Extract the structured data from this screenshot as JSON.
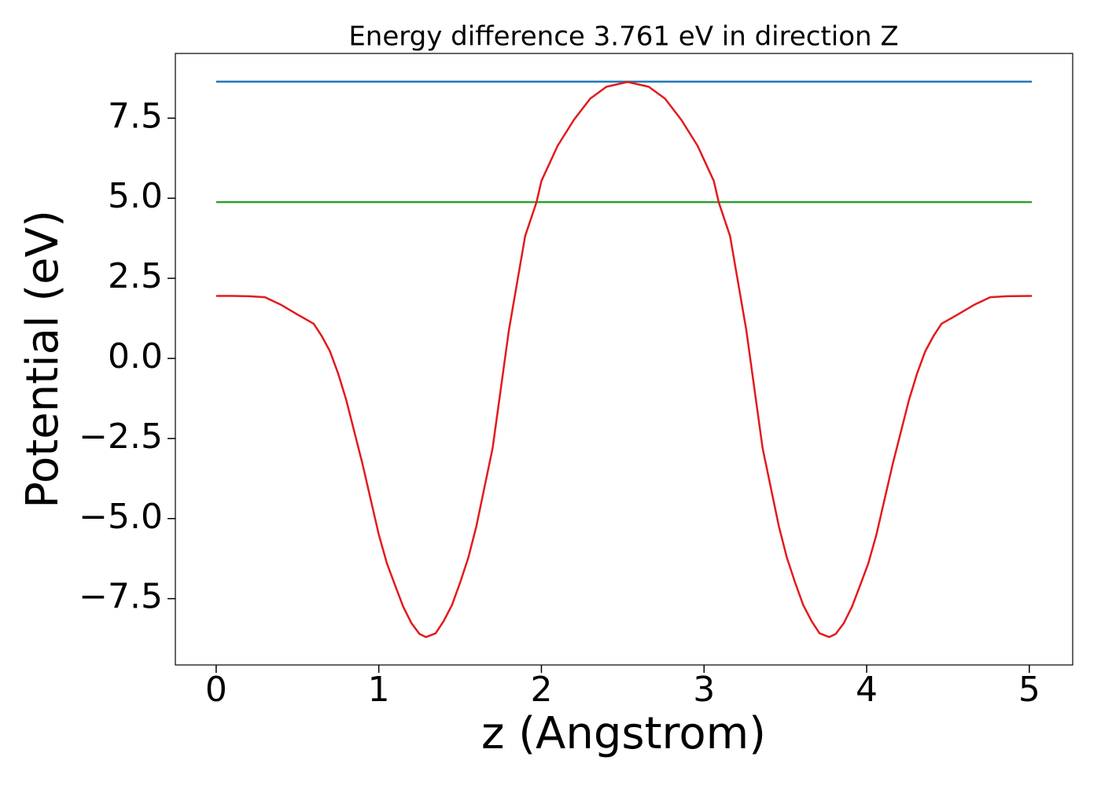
{
  "chart_data": {
    "type": "line",
    "title": "Energy difference 3.761 eV in direction Z",
    "x_label": "z (Angstrom)",
    "y_label": "Potential (eV)",
    "xlim": [
      -0.2508,
      5.2668
    ],
    "ylim": [
      -9.57,
      9.52
    ],
    "xticks": [
      0,
      1,
      2,
      3,
      4,
      5
    ],
    "yticks": [
      {
        "value": -7.5,
        "label": "−7.5"
      },
      {
        "value": -5,
        "label": "−5.0"
      },
      {
        "value": -2.5,
        "label": "−2.5"
      },
      {
        "value": 0,
        "label": "0.0"
      },
      2.5,
      {
        "value": 5,
        "label": "5.0"
      },
      7.5
    ],
    "grid": false,
    "series": [
      {
        "color": "#1f77b4",
        "x": [
          0,
          5.016
        ],
        "values": [
          8.64,
          8.64
        ]
      },
      {
        "color": "#2ca02c",
        "x": [
          0,
          5.016
        ],
        "values": [
          4.879,
          4.879
        ]
      },
      {
        "color": "#e31a1c",
        "x": [
          0,
          0.1,
          0.2,
          0.3,
          0.4,
          0.5,
          0.6,
          0.65,
          0.7,
          0.75,
          0.8,
          0.9,
          1.0,
          1.05,
          1.1,
          1.15,
          1.2,
          1.25,
          1.29,
          1.35,
          1.4,
          1.45,
          1.5,
          1.55,
          1.6,
          1.7,
          1.8,
          1.9,
          1.97,
          2.0,
          2.1,
          2.2,
          2.3,
          2.4,
          2.53,
          2.66,
          2.76,
          2.86,
          2.96,
          3.06,
          3.09,
          3.16,
          3.26,
          3.36,
          3.46,
          3.51,
          3.56,
          3.61,
          3.66,
          3.71,
          3.77,
          3.81,
          3.86,
          3.91,
          3.96,
          4.01,
          4.06,
          4.16,
          4.26,
          4.31,
          4.36,
          4.41,
          4.46,
          4.56,
          4.66,
          4.76,
          4.86,
          5.016
        ],
        "values": [
          1.95,
          1.95,
          1.94,
          1.91,
          1.67,
          1.37,
          1.08,
          0.69,
          0.22,
          -0.47,
          -1.3,
          -3.3,
          -5.5,
          -6.4,
          -7.08,
          -7.75,
          -8.26,
          -8.6,
          -8.7,
          -8.58,
          -8.19,
          -7.7,
          -7.0,
          -6.23,
          -5.24,
          -2.8,
          0.88,
          3.82,
          4.88,
          5.54,
          6.64,
          7.45,
          8.11,
          8.48,
          8.63,
          8.48,
          8.11,
          7.45,
          6.64,
          5.54,
          4.88,
          3.82,
          0.88,
          -2.8,
          -5.24,
          -6.23,
          -7.0,
          -7.7,
          -8.19,
          -8.58,
          -8.7,
          -8.6,
          -8.26,
          -7.75,
          -7.08,
          -6.4,
          -5.5,
          -3.3,
          -1.3,
          -0.47,
          0.22,
          0.69,
          1.08,
          1.37,
          1.67,
          1.91,
          1.94,
          1.95
        ]
      }
    ]
  }
}
